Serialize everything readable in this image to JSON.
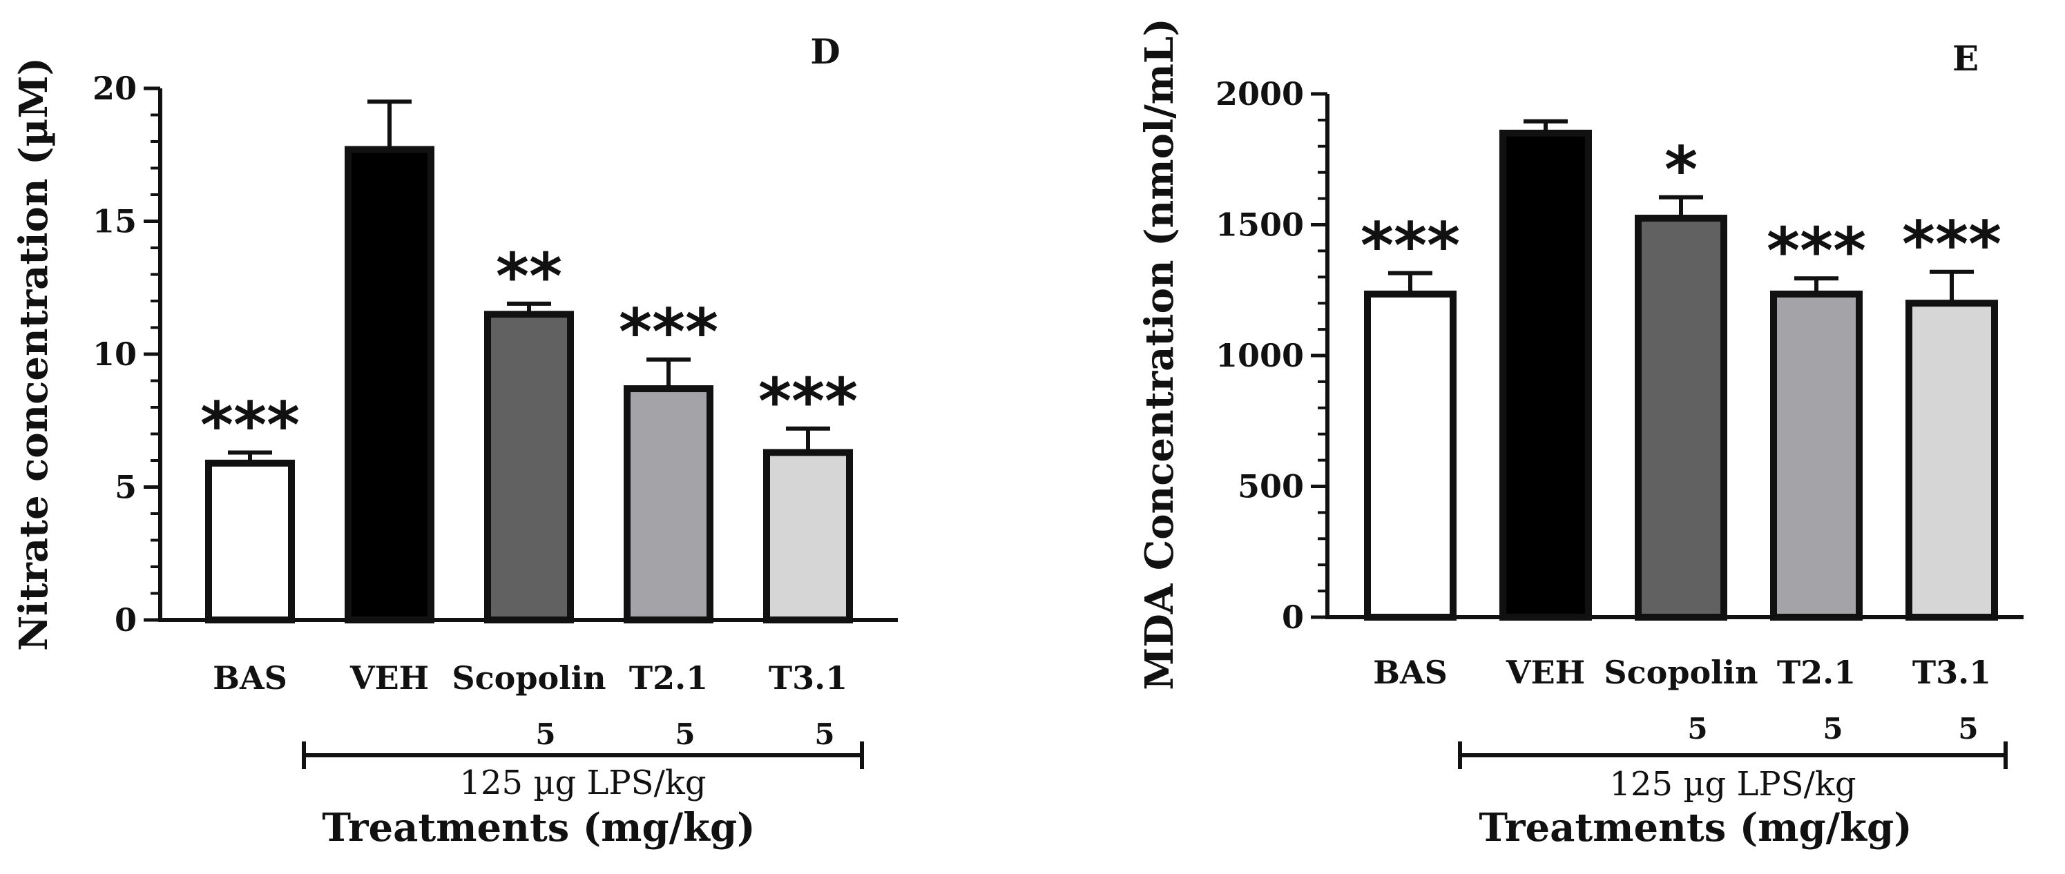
{
  "colors": {
    "axis": "#111111",
    "bar_fills": [
      "#ffffff",
      "#000000",
      "#616161",
      "#a4a4a8",
      "#d6d6d6"
    ]
  },
  "chart_data": [
    {
      "type": "bar",
      "panel": "D",
      "title": "",
      "ylabel": "Nitrate concentration (µM)",
      "xlabel": "Treatments (mg/kg)",
      "ylim": [
        0,
        20
      ],
      "yticks": [
        0,
        5,
        10,
        15,
        20
      ],
      "ytick_labels": [
        "0",
        "5",
        "10",
        "15",
        "20"
      ],
      "minor_ticks_per_major": 5,
      "categories": [
        "BAS",
        "VEH",
        "Scopolin",
        "T2.1",
        "T3.1"
      ],
      "values": [
        5.9,
        17.7,
        11.5,
        8.7,
        6.3
      ],
      "errors": [
        0.4,
        1.8,
        0.4,
        1.1,
        0.9
      ],
      "significance": [
        "***",
        "",
        "**",
        "***",
        "***"
      ],
      "doses": [
        "",
        "",
        "5",
        "5",
        "5"
      ],
      "bracket_label": "125 µg LPS/kg",
      "bracket_span": [
        "VEH",
        "T3.1"
      ]
    },
    {
      "type": "bar",
      "panel": "E",
      "title": "",
      "ylabel": "MDA Concentration (nmol/mL)",
      "xlabel": "Treatments (mg/kg)",
      "ylim": [
        0,
        2000
      ],
      "yticks": [
        0,
        500,
        1000,
        1500,
        2000
      ],
      "ytick_labels": [
        "0",
        "500",
        "1000",
        "1500",
        "2000"
      ],
      "minor_ticks_per_major": 5,
      "categories": [
        "BAS",
        "VEH",
        "Scopolin",
        "T2.1",
        "T3.1"
      ],
      "values": [
        1235,
        1850,
        1525,
        1235,
        1200
      ],
      "errors": [
        80,
        45,
        80,
        60,
        120
      ],
      "significance": [
        "***",
        "",
        "*",
        "***",
        "***"
      ],
      "doses": [
        "",
        "",
        "5",
        "5",
        "5"
      ],
      "bracket_label": "125 µg LPS/kg",
      "bracket_span": [
        "VEH",
        "T3.1"
      ]
    }
  ]
}
